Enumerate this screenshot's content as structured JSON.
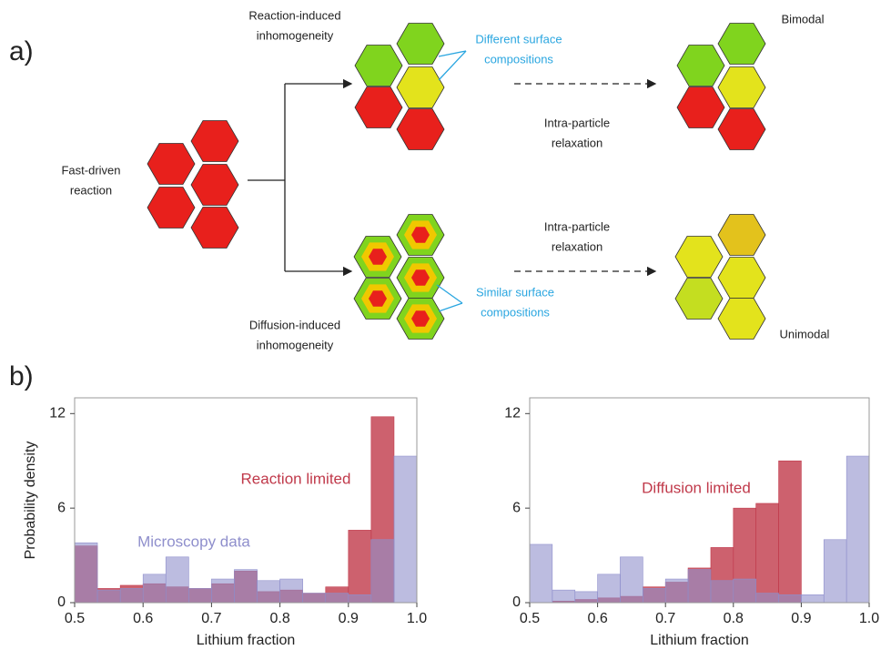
{
  "panel_a": {
    "label": "a)",
    "start": [
      "Fast-driven",
      "reaction"
    ],
    "top_branch": [
      "Reaction-induced",
      "inhomogeneity"
    ],
    "top_note": [
      "Different surface",
      "compositions"
    ],
    "top_relax": [
      "Intra-particle",
      "relaxation"
    ],
    "top_result": "Bimodal",
    "bottom_branch": [
      "Diffusion-induced",
      "inhomogeneity"
    ],
    "bottom_note": [
      "Similar surface",
      "compositions"
    ],
    "bottom_relax": [
      "Intra-particle",
      "relaxation"
    ],
    "bottom_result": "Unimodal"
  },
  "panel_b": {
    "label": "b)"
  },
  "chart_data": [
    {
      "type": "histogram",
      "ylabel": "Probability density",
      "xlabel": "Lithium fraction",
      "bins": [
        0.5,
        0.5333,
        0.5667,
        0.6,
        0.6333,
        0.6667,
        0.7,
        0.7333,
        0.7667,
        0.8,
        0.8333,
        0.8667,
        0.9,
        0.9333,
        0.9667,
        1.0
      ],
      "series": [
        {
          "name": "Reaction limited",
          "color": "#c0394a",
          "values": [
            3.6,
            0.9,
            1.1,
            1.2,
            1.0,
            0.9,
            1.2,
            2.0,
            0.7,
            0.8,
            0.6,
            1.0,
            4.6,
            11.8,
            0
          ]
        },
        {
          "name": "Microscopy data",
          "color": "#8f8fcc",
          "values": [
            3.8,
            0.8,
            0.9,
            1.8,
            2.9,
            0.9,
            1.5,
            2.1,
            1.4,
            1.5,
            0.6,
            0.6,
            0.5,
            4.0,
            9.3
          ]
        }
      ],
      "xlim": [
        0.5,
        1.0
      ],
      "ylim": [
        0,
        13
      ],
      "xticks": [
        {
          "value": 0.5,
          "label": "0.5"
        },
        0.6,
        0.7,
        0.8,
        0.9,
        {
          "value": 1.0,
          "label": "1.0"
        }
      ],
      "yticks": [
        0,
        6,
        12
      ]
    },
    {
      "type": "histogram",
      "xlabel": "Lithium fraction",
      "bins": [
        0.5,
        0.5333,
        0.5667,
        0.6,
        0.6333,
        0.6667,
        0.7,
        0.7333,
        0.7667,
        0.8,
        0.8333,
        0.8667,
        0.9,
        0.9333,
        0.9667,
        1.0
      ],
      "series": [
        {
          "name": "Diffusion limited",
          "color": "#c0394a",
          "values": [
            0,
            0.1,
            0.2,
            0.3,
            0.4,
            1.0,
            1.3,
            2.2,
            3.5,
            6.0,
            6.3,
            9.0,
            0,
            0,
            0
          ]
        },
        {
          "color": "#8f8fcc",
          "values": [
            3.7,
            0.8,
            0.7,
            1.8,
            2.9,
            0.9,
            1.5,
            2.1,
            1.4,
            1.5,
            0.6,
            0.5,
            0.5,
            4.0,
            9.3
          ]
        }
      ],
      "xlim": [
        0.5,
        1.0
      ],
      "ylim": [
        0,
        13
      ],
      "xticks": [
        {
          "value": 0.5,
          "label": "0.5"
        },
        0.6,
        0.7,
        0.8,
        0.9,
        {
          "value": 1.0,
          "label": "1.0"
        }
      ],
      "yticks": [
        0,
        6,
        12
      ]
    }
  ]
}
